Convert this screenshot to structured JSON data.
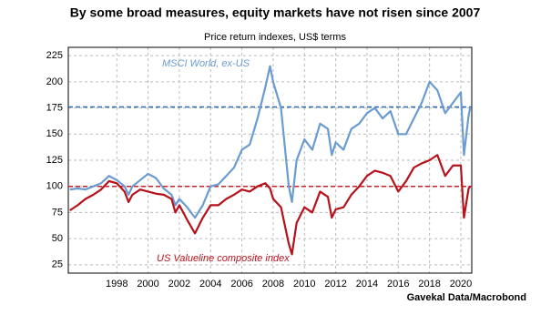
{
  "chart_data": {
    "type": "line",
    "title": "By some broad measures, equity markets have not risen since 2007",
    "subtitle": "Price return indexes, US$ terms",
    "source": "Gavekal Data/Macrobond",
    "x": [
      1995,
      1995.5,
      1996,
      1996.5,
      1997,
      1997.5,
      1998,
      1998.5,
      1998.75,
      1999,
      1999.5,
      2000,
      2000.5,
      2001,
      2001.5,
      2001.75,
      2002,
      2002.5,
      2003,
      2003.5,
      2004,
      2004.5,
      2005,
      2005.5,
      2006,
      2006.5,
      2007,
      2007.5,
      2007.8,
      2008,
      2008.5,
      2009,
      2009.2,
      2009.5,
      2010,
      2010.5,
      2011,
      2011.5,
      2011.75,
      2012,
      2012.5,
      2013,
      2013.5,
      2014,
      2014.5,
      2015,
      2015.5,
      2016,
      2016.5,
      2017,
      2017.5,
      2018,
      2018.5,
      2019,
      2019.5,
      2020,
      2020.2,
      2020.5,
      2020.6
    ],
    "series": [
      {
        "name": "MSCI World, ex-US",
        "color": "#6a9bd1",
        "values": [
          97,
          98,
          97,
          100,
          103,
          110,
          106,
          100,
          92,
          100,
          106,
          112,
          108,
          98,
          92,
          82,
          88,
          80,
          70,
          82,
          100,
          102,
          110,
          118,
          135,
          140,
          165,
          195,
          215,
          200,
          175,
          100,
          85,
          125,
          145,
          135,
          160,
          155,
          130,
          142,
          135,
          155,
          160,
          170,
          175,
          165,
          172,
          150,
          150,
          165,
          180,
          200,
          192,
          170,
          180,
          190,
          130,
          168,
          175
        ]
      },
      {
        "name": "US Valueline composite index",
        "color": "#b5121b",
        "values": [
          77,
          82,
          88,
          92,
          97,
          105,
          103,
          95,
          85,
          92,
          97,
          95,
          93,
          92,
          88,
          75,
          82,
          68,
          55,
          70,
          82,
          82,
          88,
          92,
          97,
          95,
          100,
          103,
          98,
          88,
          80,
          45,
          35,
          65,
          80,
          75,
          95,
          90,
          70,
          78,
          80,
          92,
          100,
          110,
          115,
          113,
          110,
          95,
          105,
          118,
          122,
          125,
          130,
          110,
          120,
          120,
          70,
          98,
          100
        ]
      }
    ],
    "reference_lines": [
      {
        "value": 176,
        "color": "#2e6bb5"
      },
      {
        "value": 100,
        "color": "#c8202a"
      }
    ],
    "xlim": [
      1994.9,
      2020.7
    ],
    "xticks": [
      1998,
      2000,
      2002,
      2004,
      2006,
      2008,
      2010,
      2012,
      2014,
      2016,
      2018,
      2020
    ],
    "ylim": [
      17,
      233
    ],
    "yticks": [
      25,
      50,
      75,
      100,
      125,
      150,
      175,
      200,
      225
    ],
    "grid": true
  }
}
